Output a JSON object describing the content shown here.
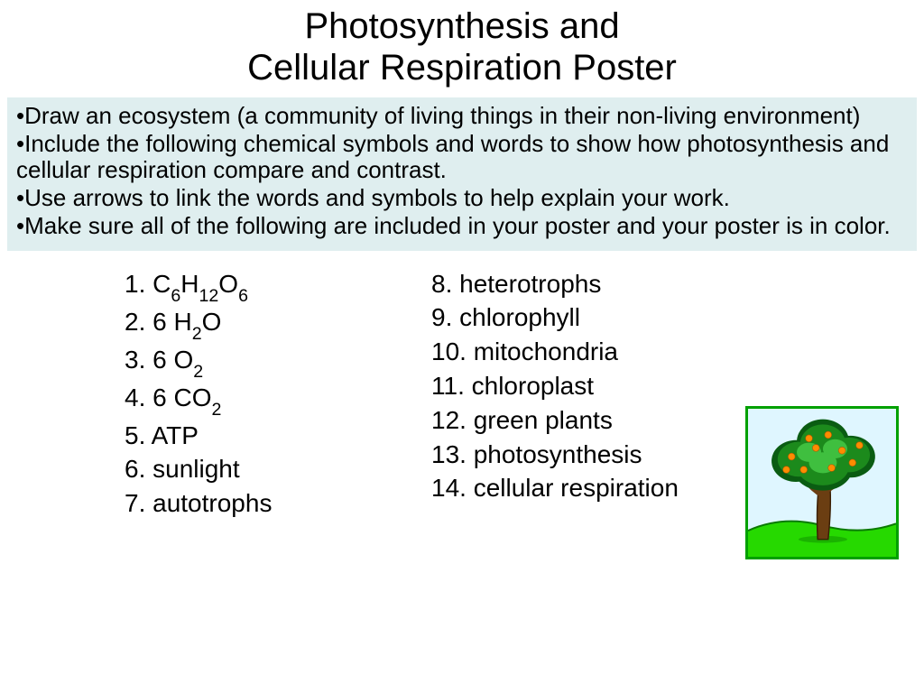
{
  "title_line1": "Photosynthesis and",
  "title_line2": "Cellular Respiration Poster",
  "instructions_bg": "#dfeeef",
  "text_color": "#000000",
  "bullets": [
    "Draw an ecosystem (a community of living things in their non-living environment)",
    "Include the following chemical symbols and words to show how photosynthesis and cellular respiration compare and contrast.",
    "Use arrows to link the words and symbols to help explain your work.",
    "Make sure all of the following are included in your poster and your poster is in color."
  ],
  "col1": [
    {
      "n": "1.",
      "pad": "   ",
      "t": "C",
      "s": "6",
      "t2": "H",
      "s2": "12",
      "t3": "O",
      "s3": "6"
    },
    {
      "n": "2.",
      "t": "6 H",
      "s": "2",
      "t2": "O"
    },
    {
      "n": "3.",
      "t": "6 O",
      "s": "2"
    },
    {
      "n": "4.",
      "t": "6 CO",
      "s": "2"
    },
    {
      "n": "5.",
      "t": "ATP"
    },
    {
      "n": "6.",
      "t": "sunlight"
    },
    {
      "n": "7.",
      "t": "autotrophs"
    }
  ],
  "col2": [
    {
      "n": "8.",
      "t": "heterotrophs"
    },
    {
      "n": "9.",
      "t": "chlorophyll"
    },
    {
      "n": "10.",
      "t": "mitochondria"
    },
    {
      "n": "11.",
      "t": "chloroplast"
    },
    {
      "n": "12.",
      "t": "green plants"
    },
    {
      "n": "13.",
      "t": "photosynthesis"
    },
    {
      "n": "14.",
      "t": "cellular respiration"
    }
  ],
  "tree": {
    "border_color": "#00a000",
    "sky_color": "#dff6ff",
    "ground_color": "#26d900",
    "ground_dark": "#0a7a00",
    "trunk_color": "#6b3e12",
    "trunk_dark": "#3a1f05",
    "foliage_dark": "#0a5c12",
    "foliage_mid": "#1c8a1c",
    "foliage_light": "#3fbf3f",
    "fruit_color": "#ff8c00"
  }
}
